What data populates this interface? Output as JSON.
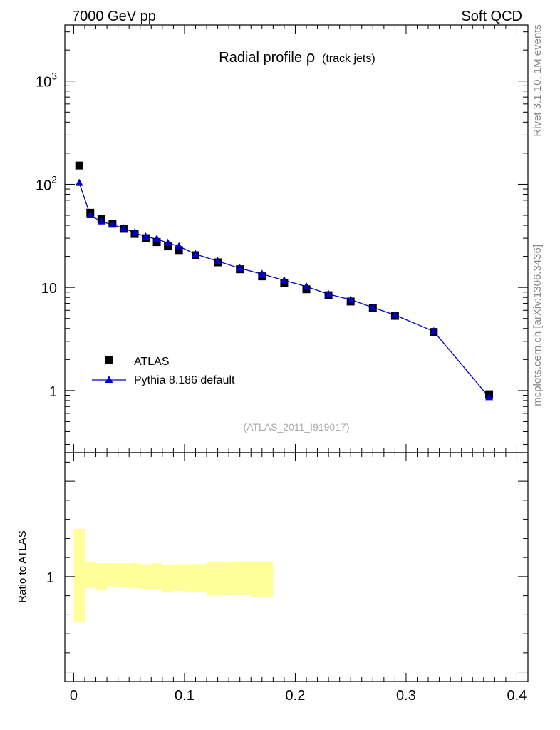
{
  "header": {
    "left": "7000 GeV pp",
    "right": "Soft QCD"
  },
  "side_labels": {
    "rivet": "Rivet 3.1.10,  1M events",
    "mcplots": "mcplots.cern.ch [arXiv:1306.3436]"
  },
  "chart_data": [
    {
      "type": "scatter",
      "title": "Radial profile",
      "title_symbol": "ρ",
      "title_suffix": "(track jets)",
      "watermark": "(ATLAS_2011_I919017)",
      "xlabel": "",
      "ylabel": "",
      "xlim": [
        -0.008,
        0.41
      ],
      "ylim": [
        0.25,
        3500
      ],
      "yscale": "log",
      "xticks": [
        "0",
        "0.1",
        "0.2",
        "0.3",
        "0.4"
      ],
      "yticks": [
        {
          "value": 1,
          "label": "1"
        },
        {
          "value": 10,
          "label": "10"
        },
        {
          "value": 100,
          "label": "10",
          "exp": "2"
        },
        {
          "value": 1000,
          "label": "10",
          "exp": "3"
        }
      ],
      "legend_position": "left",
      "series": [
        {
          "name": "ATLAS",
          "marker": "square",
          "color": "#000000",
          "x": [
            0.005,
            0.015,
            0.025,
            0.035,
            0.045,
            0.055,
            0.065,
            0.075,
            0.085,
            0.095,
            0.11,
            0.13,
            0.15,
            0.17,
            0.19,
            0.21,
            0.23,
            0.25,
            0.27,
            0.29,
            0.325,
            0.375
          ],
          "y": [
            152,
            53,
            46,
            41.5,
            37,
            33,
            30,
            27.5,
            25,
            23,
            20.5,
            17.5,
            15,
            12.8,
            11,
            9.6,
            8.4,
            7.3,
            6.3,
            5.3,
            3.7,
            0.92
          ]
        },
        {
          "name": "Pythia 8.186 default",
          "marker": "triangle",
          "color": "#0000cc",
          "x": [
            0.005,
            0.015,
            0.025,
            0.035,
            0.045,
            0.055,
            0.065,
            0.075,
            0.085,
            0.095,
            0.11,
            0.13,
            0.15,
            0.17,
            0.19,
            0.21,
            0.23,
            0.25,
            0.27,
            0.29,
            0.325,
            0.375
          ],
          "y": [
            103,
            50,
            43.5,
            40.5,
            37.5,
            34,
            31,
            29.5,
            27,
            25,
            21,
            18,
            15.3,
            13.5,
            11.7,
            10.2,
            8.6,
            7.6,
            6.4,
            5.4,
            3.75,
            0.86
          ]
        }
      ]
    },
    {
      "type": "area",
      "ylabel": "Ratio to ATLAS",
      "xlim": [
        -0.008,
        0.41
      ],
      "ylim": [
        0.45,
        1.65
      ],
      "yticks": [
        {
          "value": 1,
          "label": "1"
        }
      ],
      "xticks": [
        "0",
        "0.1",
        "0.2",
        "0.3",
        "0.4"
      ],
      "band_color": "#ffff99",
      "band": [
        {
          "x0": 0.0,
          "x1": 0.01,
          "lo": 0.76,
          "hi": 1.25
        },
        {
          "x0": 0.01,
          "x1": 0.02,
          "lo": 0.94,
          "hi": 1.08
        },
        {
          "x0": 0.02,
          "x1": 0.03,
          "lo": 0.93,
          "hi": 1.07
        },
        {
          "x0": 0.03,
          "x1": 0.04,
          "lo": 0.95,
          "hi": 1.07
        },
        {
          "x0": 0.04,
          "x1": 0.05,
          "lo": 0.945,
          "hi": 1.07
        },
        {
          "x0": 0.05,
          "x1": 0.06,
          "lo": 0.94,
          "hi": 1.07
        },
        {
          "x0": 0.06,
          "x1": 0.07,
          "lo": 0.935,
          "hi": 1.065
        },
        {
          "x0": 0.07,
          "x1": 0.08,
          "lo": 0.935,
          "hi": 1.07
        },
        {
          "x0": 0.08,
          "x1": 0.09,
          "lo": 0.92,
          "hi": 1.06
        },
        {
          "x0": 0.09,
          "x1": 0.1,
          "lo": 0.925,
          "hi": 1.065
        },
        {
          "x0": 0.1,
          "x1": 0.12,
          "lo": 0.92,
          "hi": 1.065
        },
        {
          "x0": 0.12,
          "x1": 0.14,
          "lo": 0.9,
          "hi": 1.075
        },
        {
          "x0": 0.14,
          "x1": 0.16,
          "lo": 0.905,
          "hi": 1.08
        },
        {
          "x0": 0.16,
          "x1": 0.18,
          "lo": 0.895,
          "hi": 1.08
        }
      ]
    }
  ]
}
